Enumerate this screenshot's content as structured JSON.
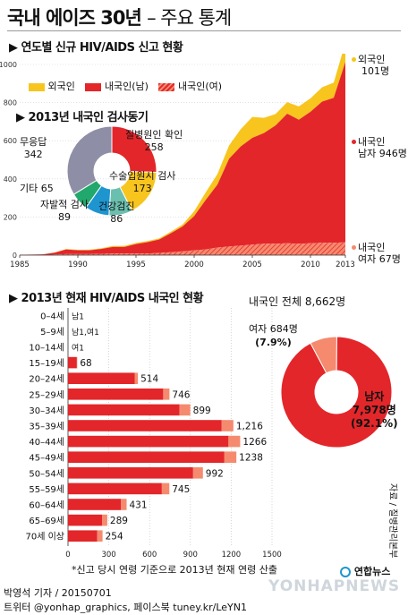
{
  "title": "국내 에이즈 30년",
  "subtitle": "– 주요 통계",
  "section1": "▶ 연도별 신규 HIV/AIDS 신고 현황",
  "section2": "▶ 2013년 현재 HIV/AIDS 내국인 현황",
  "colors": {
    "foreign": "#f7c51e",
    "male": "#e3262a",
    "female": "#f58a6e",
    "pie_gray": "#8e8ea6",
    "pie_green": "#21a86c",
    "pie_blue": "#1e95cf",
    "pie_teal": "#6bbfae"
  },
  "chart_data": [
    {
      "type": "area",
      "x_ticks": [
        "1985",
        "1990",
        "1995",
        "2000",
        "2005",
        "2010",
        "2013"
      ],
      "y_ticks": [
        "0",
        "200",
        "400",
        "600",
        "800",
        "1000"
      ],
      "ylim": [
        0,
        1000
      ],
      "legend": [
        "외국인",
        "내국인(남)",
        "내국인(여)"
      ],
      "series": [
        {
          "name": "외국인",
          "x": [
            1985,
            1986,
            1987,
            1988,
            1989,
            1990,
            1991,
            1992,
            1993,
            1994,
            1995,
            1996,
            1997,
            1998,
            1999,
            2000,
            2001,
            2002,
            2003,
            2004,
            2005,
            2006,
            2007,
            2008,
            2009,
            2010,
            2011,
            2012,
            2013
          ],
          "values": [
            0,
            0,
            0,
            1,
            2,
            3,
            4,
            4,
            5,
            6,
            6,
            6,
            6,
            8,
            10,
            25,
            40,
            55,
            70,
            90,
            110,
            80,
            60,
            60,
            70,
            70,
            75,
            80,
            101
          ]
        },
        {
          "name": "내국인(남)",
          "x": [
            1985,
            1986,
            1987,
            1988,
            1989,
            1990,
            1991,
            1992,
            1993,
            1994,
            1995,
            1996,
            1997,
            1998,
            1999,
            2000,
            2001,
            2002,
            2003,
            2004,
            2005,
            2006,
            2007,
            2008,
            2009,
            2010,
            2011,
            2012,
            2013
          ],
          "values": [
            2,
            2,
            3,
            10,
            25,
            20,
            20,
            25,
            35,
            35,
            50,
            60,
            70,
            100,
            130,
            180,
            260,
            330,
            460,
            520,
            560,
            580,
            620,
            680,
            650,
            690,
            740,
            760,
            946
          ]
        },
        {
          "name": "내국인(여)",
          "x": [
            1985,
            1986,
            1987,
            1988,
            1989,
            1990,
            1991,
            1992,
            1993,
            1994,
            1995,
            1996,
            1997,
            1998,
            1999,
            2000,
            2001,
            2002,
            2003,
            2004,
            2005,
            2006,
            2007,
            2008,
            2009,
            2010,
            2011,
            2012,
            2013
          ],
          "values": [
            0,
            1,
            1,
            3,
            5,
            5,
            5,
            7,
            8,
            8,
            8,
            8,
            12,
            15,
            20,
            25,
            30,
            40,
            45,
            50,
            55,
            60,
            60,
            62,
            60,
            62,
            65,
            65,
            67
          ]
        }
      ],
      "end_labels": [
        {
          "label": "외국인",
          "value": "101명"
        },
        {
          "label": "내국인",
          "value": "남자 946명"
        },
        {
          "label": "내국인",
          "value": "여자 67명"
        }
      ]
    },
    {
      "type": "pie",
      "title": "▶ 2013년 내국인 검사동기",
      "slices": [
        {
          "label": "질병원인 확인",
          "value": 258
        },
        {
          "label": "수술입원시 검사",
          "value": 173
        },
        {
          "label": "건강검진",
          "value": 86
        },
        {
          "label": "자발적 검사",
          "value": 89
        },
        {
          "label": "기타",
          "value": 65
        },
        {
          "label": "무응답",
          "value": 342
        }
      ]
    },
    {
      "type": "bar",
      "categories": [
        "0–4세",
        "5–9세",
        "10–14세",
        "15–19세",
        "20–24세",
        "25–29세",
        "30–34세",
        "35–39세",
        "40–44세",
        "45–49세",
        "50–54세",
        "55–59세",
        "60–64세",
        "65–69세",
        "70세 이상"
      ],
      "value_labels": [
        "남1",
        "남1,여1",
        "여1",
        "68",
        "514",
        "746",
        "899",
        "1,216",
        "1266",
        "1238",
        "992",
        "745",
        "431",
        "289",
        "254"
      ],
      "series": [
        {
          "name": "남",
          "values": [
            1,
            1,
            0,
            65,
            490,
            700,
            820,
            1130,
            1180,
            1150,
            920,
            690,
            390,
            250,
            215
          ]
        },
        {
          "name": "여",
          "values": [
            0,
            1,
            1,
            3,
            24,
            46,
            79,
            86,
            86,
            88,
            72,
            55,
            41,
            39,
            39
          ]
        }
      ],
      "x_ticks": [
        "0",
        "300",
        "600",
        "900",
        "1200",
        "1500"
      ],
      "xlim": [
        0,
        1500
      ]
    },
    {
      "type": "pie",
      "title": "내국인 전체 8,662명",
      "slices": [
        {
          "label": "여자",
          "value": 684,
          "count": "684명",
          "pct": "(7.9%)"
        },
        {
          "label": "남자",
          "value": 7978,
          "count": "7,978명",
          "pct": "(92.1%)"
        }
      ]
    }
  ],
  "footnote": "*신고 당시 연령 기준으로 2013년 현재 연령 산출",
  "source": "자료 / 질병관리본부",
  "credit1": "박영석 기자 / 20150701",
  "credit2": "트위터 @yonhap_graphics, 페이스북 tuney.kr/LeYN1",
  "logo": "연합뉴스",
  "watermark": "YONHAPNEWS"
}
